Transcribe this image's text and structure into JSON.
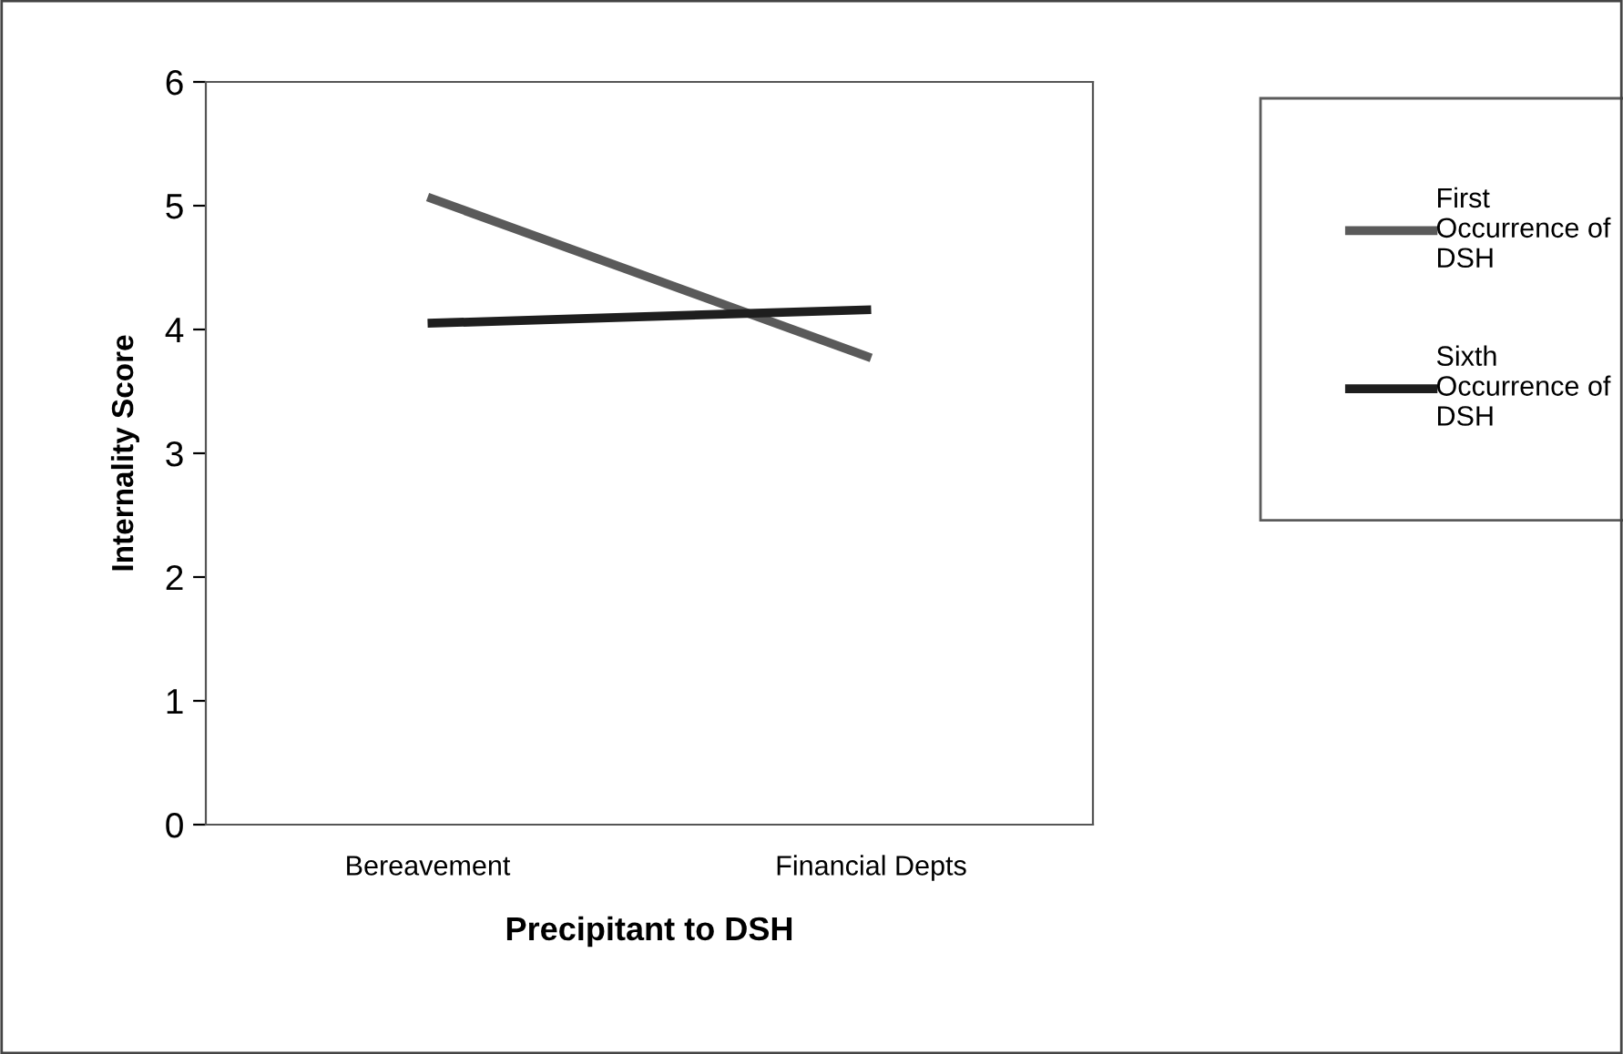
{
  "chart_data": {
    "type": "line",
    "xlabel": "Precipitant to DSH",
    "ylabel": "Internality Score",
    "categories": [
      "Bereavement",
      "Financial Depts"
    ],
    "series": [
      {
        "name": "First Occurrence of DSH",
        "color": "#5a5a5a",
        "values": [
          5.07,
          3.77
        ]
      },
      {
        "name": "Sixth Occurrence of DSH",
        "color": "#1e1e1e",
        "values": [
          4.05,
          4.16
        ]
      }
    ],
    "ylim": [
      0,
      6
    ],
    "yticks": [
      0,
      1,
      2,
      3,
      4,
      5,
      6
    ],
    "grid": false,
    "legend": "right",
    "marker": "none",
    "line_style": "solid"
  }
}
